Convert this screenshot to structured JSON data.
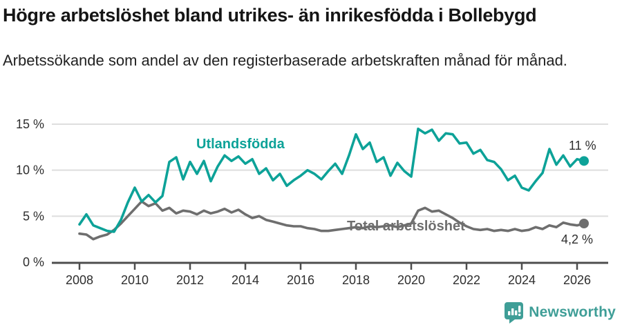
{
  "chart_data": {
    "type": "line",
    "title": "Högre arbetslöshet bland utrikes- än inrikesfödda i Bollebygd",
    "subtitle": "Arbetssökande som andel av den registerbaserade arbetskraften månad för månad.",
    "x_start": 2008,
    "x_step": 0.25,
    "x_end": 2026.25,
    "ylim": [
      0,
      15
    ],
    "grid": "horizontal",
    "legend": "inline-labels-near-lines",
    "yticks": [
      {
        "value": 0,
        "label": "0 %"
      },
      {
        "value": 5,
        "label": "5 %"
      },
      {
        "value": 10,
        "label": "10 %"
      },
      {
        "value": 15,
        "label": "15 %"
      }
    ],
    "xticks": [
      {
        "value": 2008,
        "label": "2008"
      },
      {
        "value": 2010,
        "label": "2010"
      },
      {
        "value": 2012,
        "label": "2012"
      },
      {
        "value": 2014,
        "label": "2014"
      },
      {
        "value": 2016,
        "label": "2016"
      },
      {
        "value": 2018,
        "label": "2018"
      },
      {
        "value": 2020,
        "label": "2020"
      },
      {
        "value": 2022,
        "label": "2022"
      },
      {
        "value": 2024,
        "label": "2024"
      },
      {
        "value": 2026,
        "label": "2026"
      }
    ],
    "series": [
      {
        "name": "Utlandsfödda",
        "color": "#0da298",
        "end_label": "11 %",
        "end_dot": true,
        "values": [
          4.1,
          5.2,
          4.0,
          3.7,
          3.4,
          3.3,
          4.6,
          6.5,
          8.1,
          6.6,
          7.3,
          6.5,
          7.2,
          10.9,
          11.4,
          9.0,
          10.9,
          9.6,
          11.0,
          8.8,
          10.4,
          11.6,
          11.0,
          11.5,
          10.7,
          11.2,
          9.6,
          10.2,
          8.9,
          9.6,
          8.3,
          8.9,
          9.4,
          10.0,
          9.6,
          9.0,
          9.9,
          10.7,
          9.6,
          11.6,
          13.9,
          12.3,
          13.0,
          10.9,
          11.4,
          9.4,
          10.8,
          9.9,
          9.3,
          14.5,
          14.0,
          14.4,
          13.2,
          14.0,
          13.9,
          12.9,
          13.0,
          11.8,
          12.2,
          11.1,
          10.9,
          10.1,
          8.9,
          9.4,
          8.1,
          7.8,
          8.8,
          9.7,
          12.3,
          10.6,
          11.6,
          10.4,
          11.2,
          11.0
        ]
      },
      {
        "name": "Total arbetslöshet",
        "color": "#6e6e6e",
        "end_label": "4,2 %",
        "end_dot": true,
        "values": [
          3.1,
          3.0,
          2.5,
          2.8,
          3.0,
          3.5,
          4.2,
          5.0,
          5.8,
          6.6,
          6.1,
          6.4,
          5.6,
          5.9,
          5.3,
          5.6,
          5.5,
          5.2,
          5.6,
          5.3,
          5.5,
          5.8,
          5.4,
          5.7,
          5.2,
          4.8,
          5.0,
          4.6,
          4.4,
          4.2,
          4.0,
          3.9,
          3.9,
          3.7,
          3.6,
          3.4,
          3.4,
          3.5,
          3.6,
          3.7,
          3.8,
          3.7,
          3.9,
          3.8,
          3.9,
          4.0,
          3.8,
          4.0,
          4.2,
          5.6,
          5.9,
          5.5,
          5.6,
          5.2,
          4.8,
          4.3,
          3.9,
          3.6,
          3.5,
          3.6,
          3.4,
          3.5,
          3.4,
          3.6,
          3.4,
          3.5,
          3.8,
          3.6,
          4.0,
          3.8,
          4.3,
          4.1,
          4.0,
          4.2
        ]
      }
    ],
    "colors": {
      "grid": "#dedede",
      "axis": "#4d4d4d",
      "tick_text": "#2e2e2e"
    }
  },
  "footer": {
    "brand": "Newsworthy",
    "brand_color": "#3f9e97",
    "logo_icon": "bar-chart-speech-bubble"
  }
}
